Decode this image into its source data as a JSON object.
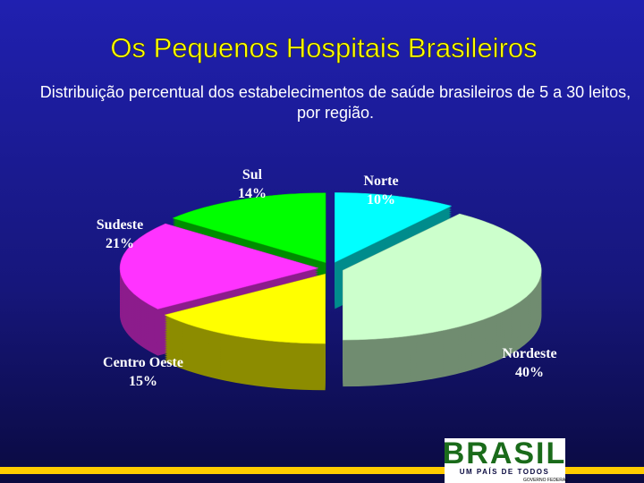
{
  "chart_data": {
    "type": "pie3d",
    "title": "Os Pequenos Hospitais Brasileiros",
    "subtitle": "Distribuição percentual dos estabelecimentos de saúde brasileiros de 5 a 30 leitos, por região.",
    "categories": [
      "Norte",
      "Nordeste",
      "Centro Oeste",
      "Sudeste",
      "Sul"
    ],
    "values": [
      10,
      40,
      15,
      21,
      14
    ],
    "value_labels": [
      "10%",
      "40%",
      "15%",
      "21%",
      "14%"
    ],
    "colors": [
      "#00ffff",
      "#ccffcc",
      "#ffff00",
      "#ff33ff",
      "#00ff00"
    ]
  },
  "logo": {
    "name": "BRASIL",
    "tagline": "UM PAÍS DE TODOS",
    "caption": "GOVERNO FEDERAL"
  }
}
